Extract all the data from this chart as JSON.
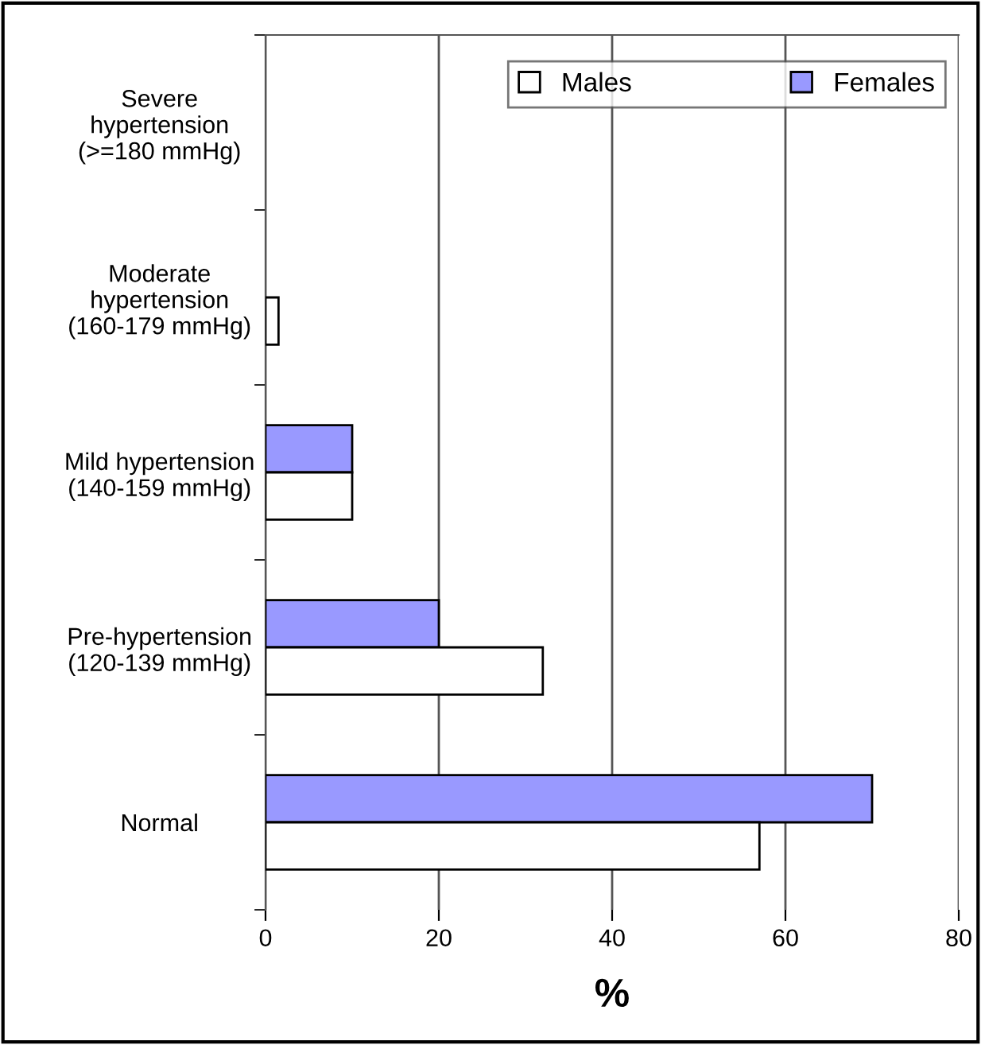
{
  "chart_data": {
    "type": "bar",
    "orientation": "horizontal",
    "xlabel": "%",
    "categories": [
      "Severe\nhypertension\n(>=180 mmHg)",
      "Moderate\nhypertension\n(160-179 mmHg)",
      "Mild hypertension\n(140-159 mmHg)",
      "Pre-hypertension\n(120-139 mmHg)",
      "Normal"
    ],
    "series": [
      {
        "name": "Females",
        "color": "#9999ff",
        "values": [
          null,
          null,
          10,
          20,
          70
        ]
      },
      {
        "name": "Males",
        "color": "#ffffff",
        "values": [
          null,
          1.5,
          10,
          32,
          57
        ]
      }
    ],
    "xlim": [
      0,
      80
    ],
    "xticks": [
      0,
      20,
      40,
      60,
      80
    ],
    "grid": "x",
    "legend": "top right"
  }
}
